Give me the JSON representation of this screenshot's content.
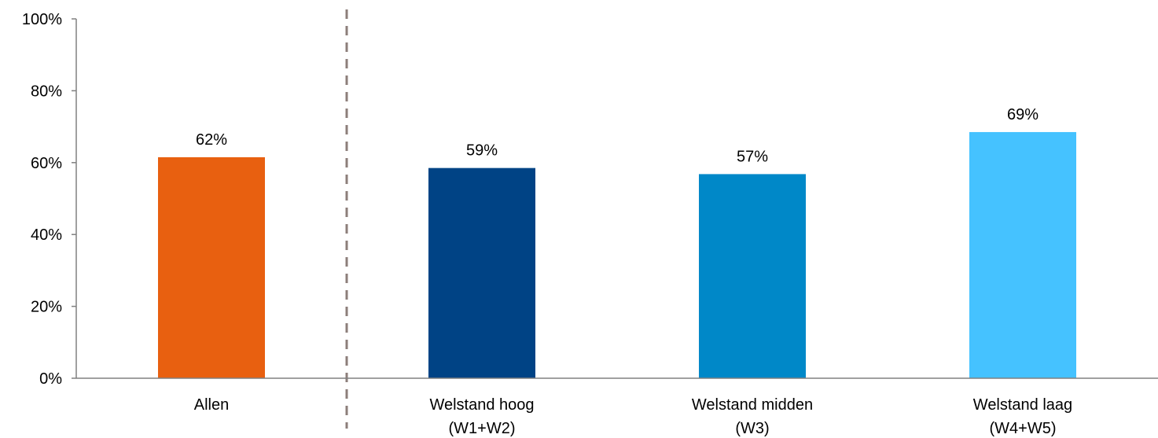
{
  "chart_data": {
    "type": "bar",
    "title": "",
    "xlabel": "",
    "ylabel": "",
    "ylim": [
      0,
      100
    ],
    "yticks": [
      "0%",
      "20%",
      "40%",
      "60%",
      "80%",
      "100%"
    ],
    "grid": false,
    "legend": "none",
    "categories": [
      [
        "Allen"
      ],
      [
        "Welstand hoog",
        "(W1+W2)"
      ],
      [
        "Welstand midden",
        "(W3)"
      ],
      [
        "Welstand laag",
        "(W4+W5)"
      ]
    ],
    "values": [
      61.5,
      58.5,
      56.8,
      68.5
    ],
    "data_labels": [
      "62%",
      "59%",
      "57%",
      "69%"
    ],
    "colors": [
      "#E86010",
      "#004385",
      "#0088C8",
      "#45C2FF"
    ],
    "separator_after_category": 0,
    "separator_color": "#8C7E7A",
    "axis_color": "#808080"
  }
}
